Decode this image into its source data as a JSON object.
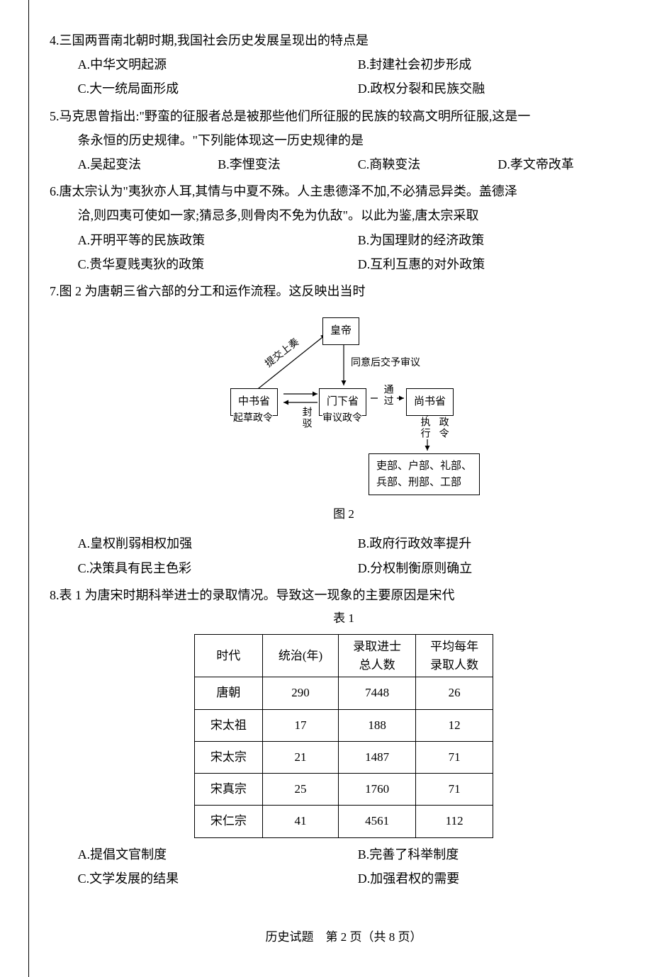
{
  "q4": {
    "stem": "4.三国两晋南北朝时期,我国社会历史发展呈现出的特点是",
    "A": "A.中华文明起源",
    "B": "B.封建社会初步形成",
    "C": "C.大一统局面形成",
    "D": "D.政权分裂和民族交融"
  },
  "q5": {
    "stem1": "5.马克思曾指出:\"野蛮的征服者总是被那些他们所征服的民族的较高文明所征服,这是一",
    "stem2": "条永恒的历史规律。\"下列能体现这一历史规律的是",
    "A": "A.吴起变法",
    "B": "B.李悝变法",
    "C": "C.商鞅变法",
    "D": "D.孝文帝改革"
  },
  "q6": {
    "stem1": "6.唐太宗认为\"夷狄亦人耳,其情与中夏不殊。人主患德泽不加,不必猜忌异类。盖德泽",
    "stem2": "洽,则四夷可使如一家;猜忌多,则骨肉不免为仇敌\"。以此为鉴,唐太宗采取",
    "A": "A.开明平等的民族政策",
    "B": "B.为国理财的经济政策",
    "C": "C.贵华夏贱夷狄的政策",
    "D": "D.互利互惠的对外政策"
  },
  "q7": {
    "stem": "7.图 2 为唐朝三省六部的分工和运作流程。这反映出当时",
    "diagram": {
      "emperor": "皇帝",
      "zhongshu": "中书省",
      "menxia": "门下省",
      "shangshu": "尚书省",
      "six": "吏部、户部、礼部、\n兵部、刑部、工部",
      "submit": "提交上奏",
      "approve": "同意后交予审议",
      "draft": "起草政令",
      "reject": "封驳",
      "review": "审议政令",
      "pass": "通过",
      "exec1": "执行",
      "exec2": "政令",
      "caption": "图 2",
      "colors": {
        "line": "#000000",
        "bg": "#ffffff"
      }
    },
    "A": "A.皇权削弱相权加强",
    "B": "B.政府行政效率提升",
    "C": "C.决策具有民主色彩",
    "D": "D.分权制衡原则确立"
  },
  "q8": {
    "stem": "8.表 1 为唐宋时期科举进士的录取情况。导致这一现象的主要原因是宋代",
    "table": {
      "caption": "表 1",
      "columns": [
        "时代",
        "统治(年)",
        "录取进士\n总人数",
        "平均每年\n录取人数"
      ],
      "rows": [
        [
          "唐朝",
          "290",
          "7448",
          "26"
        ],
        [
          "宋太祖",
          "17",
          "188",
          "12"
        ],
        [
          "宋太宗",
          "21",
          "1487",
          "71"
        ],
        [
          "宋真宗",
          "25",
          "1760",
          "71"
        ],
        [
          "宋仁宗",
          "41",
          "4561",
          "112"
        ]
      ]
    },
    "A": "A.提倡文官制度",
    "B": "B.完善了科举制度",
    "C": "C.文学发展的结果",
    "D": "D.加强君权的需要"
  },
  "footer": "历史试题　第 2 页（共 8 页）"
}
